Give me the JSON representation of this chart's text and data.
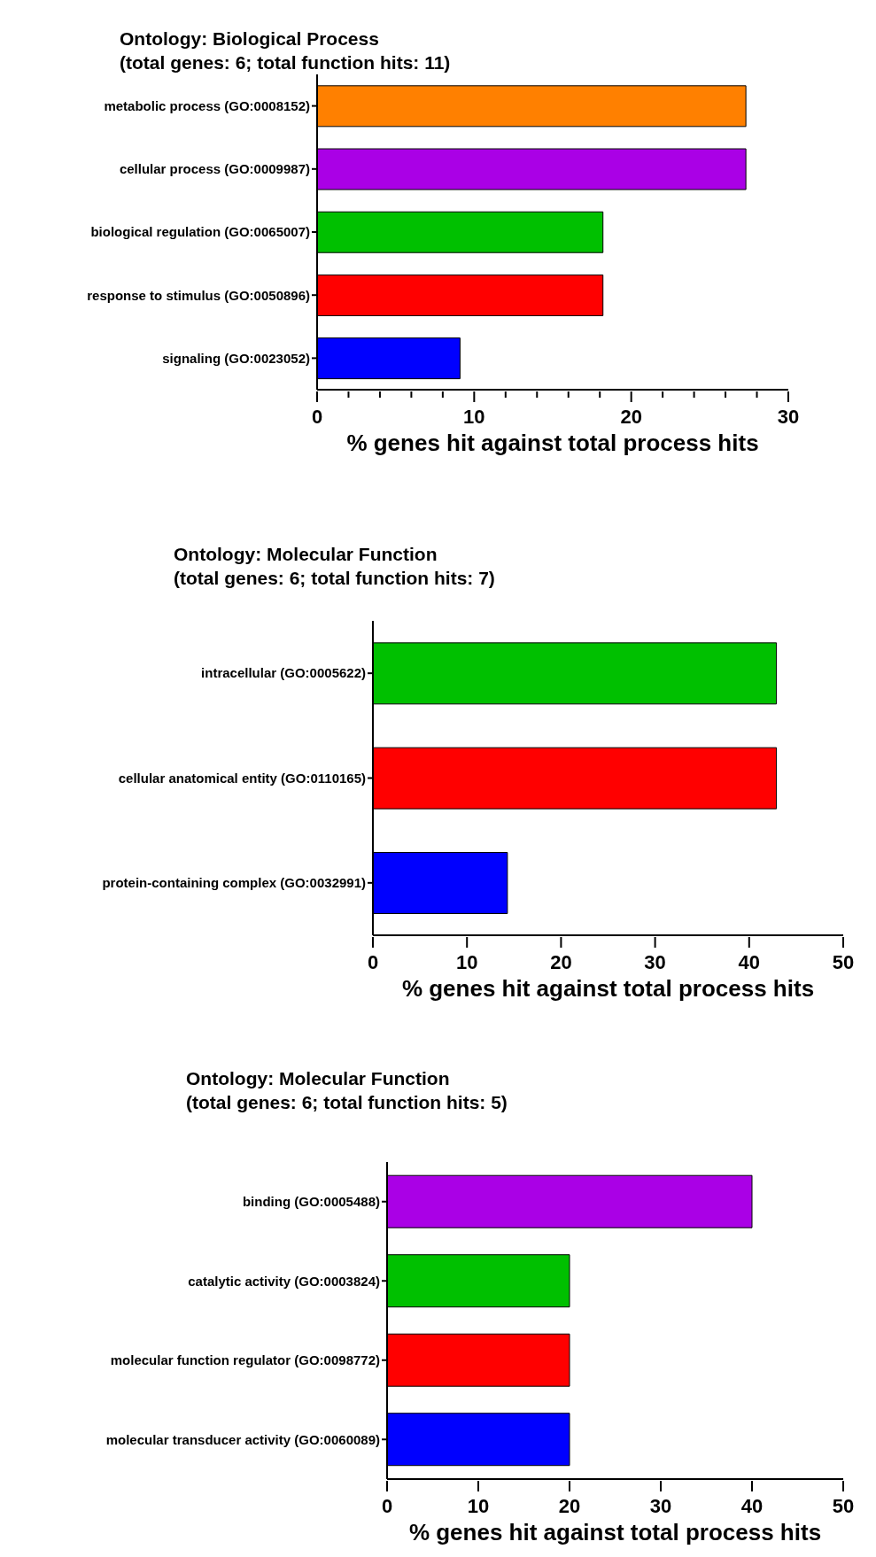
{
  "chart_data": [
    {
      "type": "bar",
      "orientation": "horizontal",
      "title": "Ontology: Biological Process",
      "subtitle": "(total genes: 6; total function hits: 11)",
      "xlabel": "% genes hit against total process hits",
      "categories": [
        "metabolic process (GO:0008152)",
        "cellular process (GO:0009987)",
        "biological regulation (GO:0065007)",
        "response to stimulus (GO:0050896)",
        "signaling (GO:0023052)"
      ],
      "values": [
        27.3,
        27.3,
        18.2,
        18.2,
        9.1
      ],
      "colors": [
        "#ff8000",
        "#aa00e6",
        "#00c000",
        "#ff0000",
        "#0000ff"
      ],
      "xlim": [
        0,
        30
      ],
      "xticks": [
        0,
        {
          "value": 2,
          "label": null
        },
        {
          "value": 4,
          "label": null
        },
        {
          "value": 6,
          "label": null
        },
        {
          "value": 8,
          "label": null
        },
        10,
        {
          "value": 12,
          "label": null
        },
        {
          "value": 14,
          "label": null
        },
        {
          "value": 16,
          "label": null
        },
        {
          "value": 18,
          "label": null
        },
        20,
        {
          "value": 22,
          "label": null
        },
        {
          "value": 24,
          "label": null
        },
        {
          "value": 26,
          "label": null
        },
        {
          "value": 28,
          "label": null
        },
        30
      ],
      "grid": false
    },
    {
      "type": "bar",
      "orientation": "horizontal",
      "title": "Ontology: Molecular Function",
      "subtitle": "(total genes: 6; total function hits: 7)",
      "xlabel": "% genes hit against total process hits",
      "categories": [
        "intracellular (GO:0005622)",
        "cellular anatomical entity (GO:0110165)",
        "protein-containing complex (GO:0032991)"
      ],
      "values": [
        42.9,
        42.9,
        14.3
      ],
      "colors": [
        "#00c000",
        "#ff0000",
        "#0000ff"
      ],
      "xlim": [
        0,
        50
      ],
      "xticks": [
        0,
        10,
        20,
        30,
        40,
        50
      ],
      "grid": false
    },
    {
      "type": "bar",
      "orientation": "horizontal",
      "title": "Ontology: Molecular Function",
      "subtitle": "(total genes: 6; total function hits: 5)",
      "xlabel": "% genes hit against total process hits",
      "categories": [
        "binding (GO:0005488)",
        "catalytic activity (GO:0003824)",
        "molecular function regulator (GO:0098772)",
        "molecular transducer activity (GO:0060089)"
      ],
      "values": [
        40,
        20,
        20,
        20
      ],
      "colors": [
        "#aa00e6",
        "#00c000",
        "#ff0000",
        "#0000ff"
      ],
      "xlim": [
        0,
        50
      ],
      "xticks": [
        0,
        10,
        20,
        30,
        40,
        50
      ],
      "grid": false
    }
  ]
}
